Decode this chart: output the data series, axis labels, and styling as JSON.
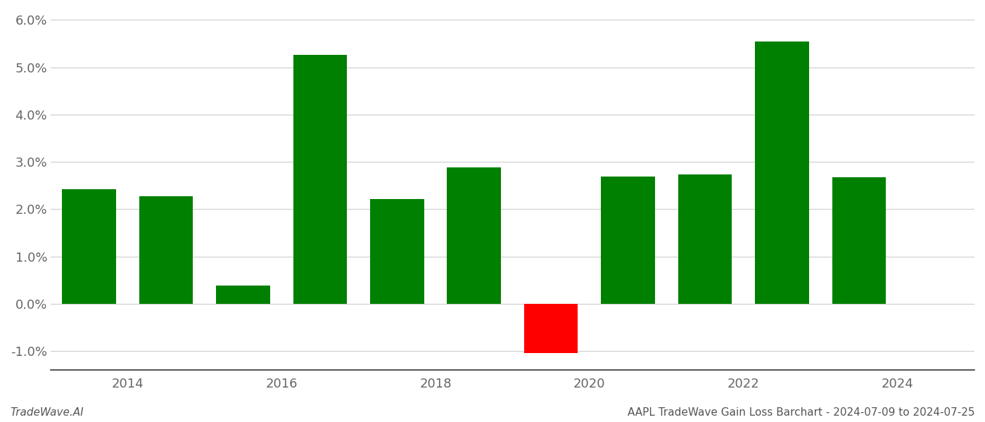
{
  "bar_positions": [
    2013.5,
    2014.5,
    2015.5,
    2016.5,
    2017.5,
    2018.5,
    2019.5,
    2020.5,
    2021.5,
    2022.5,
    2023.5
  ],
  "values": [
    2.42,
    2.27,
    0.38,
    5.27,
    2.22,
    2.89,
    -1.05,
    2.69,
    2.73,
    5.55,
    2.67
  ],
  "bar_colors": [
    "#008000",
    "#008000",
    "#008000",
    "#008000",
    "#008000",
    "#008000",
    "#ff0000",
    "#008000",
    "#008000",
    "#008000",
    "#008000"
  ],
  "footer_left": "TradeWave.AI",
  "footer_right": "AAPL TradeWave Gain Loss Barchart - 2024-07-09 to 2024-07-25",
  "ylim": [
    -1.4,
    6.2
  ],
  "yticks": [
    -1.0,
    0.0,
    1.0,
    2.0,
    3.0,
    4.0,
    5.0,
    6.0
  ],
  "xticks": [
    2014,
    2016,
    2018,
    2020,
    2022,
    2024
  ],
  "xlim": [
    2013.0,
    2025.0
  ],
  "background_color": "#ffffff",
  "grid_color": "#cccccc",
  "bar_width": 0.7,
  "figsize": [
    14.0,
    6.0
  ],
  "dpi": 100
}
